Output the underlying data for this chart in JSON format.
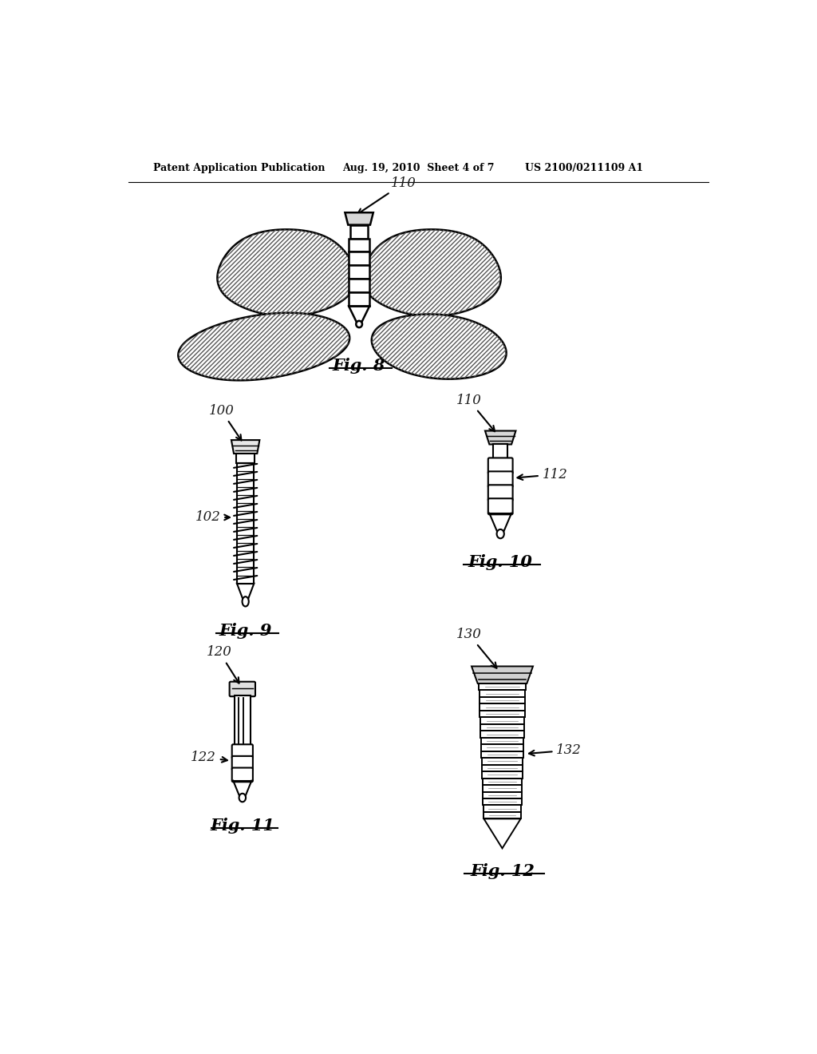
{
  "header_left": "Patent Application Publication",
  "header_center": "Aug. 19, 2010  Sheet 4 of 7",
  "header_right": "US 2100/0211109 A1",
  "fig8_label": "Fig. 8",
  "fig9_label": "Fig. 9",
  "fig10_label": "Fig. 10",
  "fig11_label": "Fig. 11",
  "fig12_label": "Fig. 12",
  "bg_color": "#ffffff",
  "line_color": "#000000",
  "label_color": "#1a1a1a"
}
